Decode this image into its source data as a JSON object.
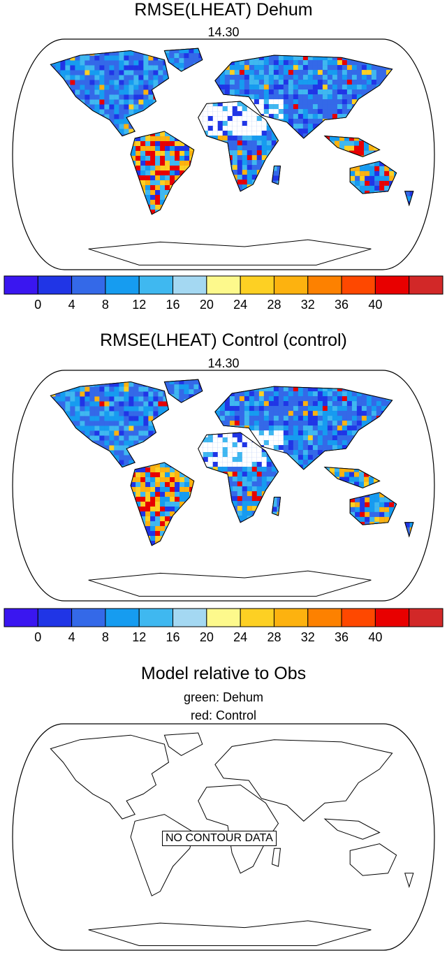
{
  "chart_data": [
    {
      "type": "heatmap",
      "title": "RMSE(LHEAT) Dehum",
      "subtitle": "14.30",
      "projection": "Robinson (global land)",
      "colorbar": {
        "colors": [
          "#3a16f0",
          "#2035e6",
          "#3469e8",
          "#169cf0",
          "#3fb8f0",
          "#a4d8f2",
          "#fdf98c",
          "#fdd023",
          "#fdb20f",
          "#fd8100",
          "#fe4800",
          "#e80000",
          "#d22828"
        ],
        "tick_labels": [
          "0",
          "4",
          "8",
          "12",
          "16",
          "20",
          "24",
          "28",
          "32",
          "36",
          "40"
        ],
        "range": [
          0,
          44
        ]
      }
    },
    {
      "type": "heatmap",
      "title": "RMSE(LHEAT) Control (control)",
      "subtitle": "14.30",
      "projection": "Robinson (global land)",
      "colorbar": {
        "colors": [
          "#3a16f0",
          "#2035e6",
          "#3469e8",
          "#169cf0",
          "#3fb8f0",
          "#a4d8f2",
          "#fdf98c",
          "#fdd023",
          "#fdb20f",
          "#fd8100",
          "#fe4800",
          "#e80000",
          "#d22828"
        ],
        "tick_labels": [
          "0",
          "4",
          "8",
          "12",
          "16",
          "20",
          "24",
          "28",
          "32",
          "36",
          "40"
        ],
        "range": [
          0,
          44
        ]
      }
    },
    {
      "type": "heatmap",
      "title": "Model relative to Obs",
      "legend_lines": [
        "green: Dehum",
        "red: Control"
      ],
      "message": "NO CONTOUR DATA"
    }
  ]
}
